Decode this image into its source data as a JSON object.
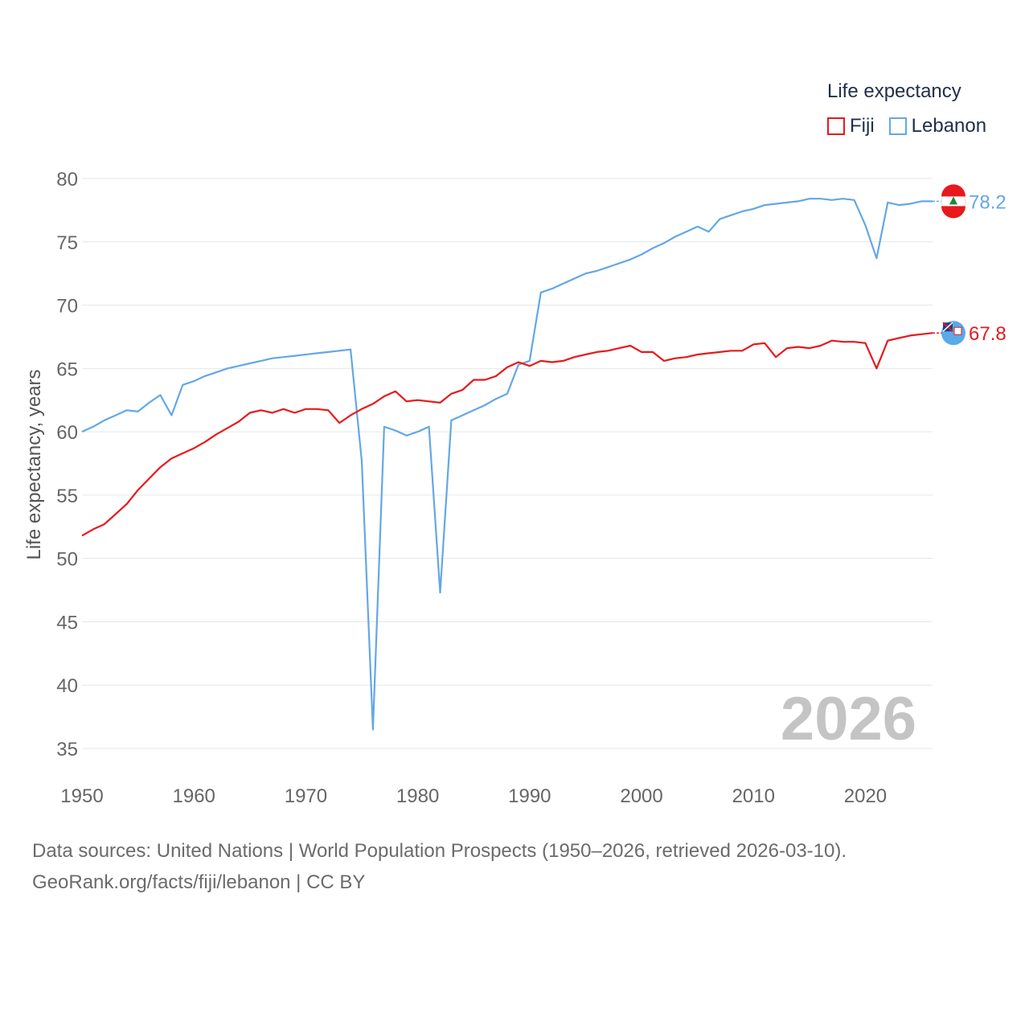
{
  "legend": {
    "title": "Life expectancy"
  },
  "footer": {
    "line1": "Data sources: United Nations | World Population Prospects (1950–2026, retrieved 2026-03-10).",
    "line2": "GeoRank.org/facts/fiji/lebanon | CC BY"
  },
  "chart_data": {
    "type": "line",
    "title": "Life expectancy",
    "xlabel": "",
    "ylabel": "Life expectancy, years",
    "xlim": [
      1950,
      2026
    ],
    "ylim": [
      35,
      80
    ],
    "xticks": [
      1950,
      1960,
      1970,
      1980,
      1990,
      2000,
      2010,
      2020
    ],
    "yticks": [
      35,
      40,
      45,
      50,
      55,
      60,
      65,
      70,
      75,
      80
    ],
    "grid": true,
    "legend_position": "top-right",
    "year_watermark": "2026",
    "x": [
      1950,
      1951,
      1952,
      1953,
      1954,
      1955,
      1956,
      1957,
      1958,
      1959,
      1960,
      1961,
      1962,
      1963,
      1964,
      1965,
      1966,
      1967,
      1968,
      1969,
      1970,
      1971,
      1972,
      1973,
      1974,
      1975,
      1976,
      1977,
      1978,
      1979,
      1980,
      1981,
      1982,
      1983,
      1984,
      1985,
      1986,
      1987,
      1988,
      1989,
      1990,
      1991,
      1992,
      1993,
      1994,
      1995,
      1996,
      1997,
      1998,
      1999,
      2000,
      2001,
      2002,
      2003,
      2004,
      2005,
      2006,
      2007,
      2008,
      2009,
      2010,
      2011,
      2012,
      2013,
      2014,
      2015,
      2016,
      2017,
      2018,
      2019,
      2020,
      2021,
      2022,
      2023,
      2024,
      2025,
      2026
    ],
    "series": [
      {
        "name": "Fiji",
        "color": "#e8191c",
        "end_label": "67.8",
        "values": [
          51.8,
          52.3,
          52.7,
          53.5,
          54.3,
          55.4,
          56.3,
          57.2,
          57.9,
          58.3,
          58.7,
          59.2,
          59.8,
          60.3,
          60.8,
          61.5,
          61.7,
          61.5,
          61.8,
          61.5,
          61.8,
          61.8,
          61.7,
          60.7,
          61.3,
          61.8,
          62.2,
          62.8,
          63.2,
          62.4,
          62.5,
          62.4,
          62.3,
          63.0,
          63.3,
          64.1,
          64.1,
          64.4,
          65.1,
          65.5,
          65.2,
          65.6,
          65.5,
          65.6,
          65.9,
          66.1,
          66.3,
          66.4,
          66.6,
          66.8,
          66.3,
          66.3,
          65.6,
          65.8,
          65.9,
          66.1,
          66.2,
          66.3,
          66.4,
          66.4,
          66.9,
          67.0,
          65.9,
          66.6,
          66.7,
          66.6,
          66.8,
          67.2,
          67.1,
          67.1,
          67.0,
          65.0,
          67.2,
          67.4,
          67.6,
          67.7,
          67.8
        ]
      },
      {
        "name": "Lebanon",
        "color": "#64a7e6",
        "end_label": "78.2",
        "values": [
          60.0,
          60.4,
          60.9,
          61.3,
          61.7,
          61.6,
          62.3,
          62.9,
          61.3,
          63.7,
          64.0,
          64.4,
          64.7,
          65.0,
          65.2,
          65.4,
          65.6,
          65.8,
          65.9,
          66.0,
          66.1,
          66.2,
          66.3,
          66.4,
          66.5,
          57.7,
          36.5,
          60.4,
          60.1,
          59.7,
          60.0,
          60.4,
          47.3,
          60.9,
          61.3,
          61.7,
          62.1,
          62.6,
          63.0,
          65.3,
          65.6,
          71.0,
          71.3,
          71.7,
          72.1,
          72.5,
          72.7,
          73.0,
          73.3,
          73.6,
          74.0,
          74.5,
          74.9,
          75.4,
          75.8,
          76.2,
          75.8,
          76.8,
          77.1,
          77.4,
          77.6,
          77.9,
          78.0,
          78.1,
          78.2,
          78.4,
          78.4,
          78.3,
          78.4,
          78.3,
          76.3,
          73.7,
          78.1,
          77.9,
          78.0,
          78.2,
          78.2
        ]
      }
    ]
  }
}
